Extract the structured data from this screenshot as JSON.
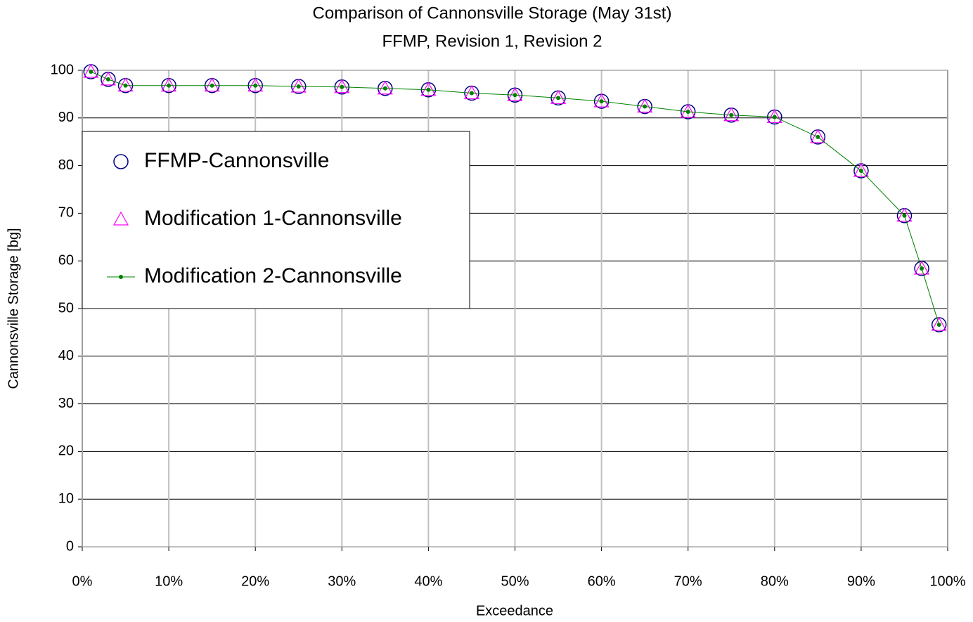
{
  "chart_data": {
    "type": "line",
    "title": "Comparison of Cannonsville Storage (May 31st)",
    "subtitle": "FFMP, Revision 1, Revision 2",
    "x_label": "Exceedance",
    "y_label": "Cannonsville Storage [bg]",
    "x": [
      1,
      3,
      5,
      10,
      15,
      20,
      25,
      30,
      35,
      40,
      45,
      50,
      55,
      60,
      65,
      70,
      75,
      80,
      85,
      90,
      95,
      97,
      99
    ],
    "series": [
      {
        "name": "FFMP-Cannonsville",
        "color": "#000080",
        "marker": "circle",
        "values": [
          99.7,
          98.1,
          96.8,
          96.8,
          96.8,
          96.8,
          96.6,
          96.5,
          96.2,
          95.9,
          95.2,
          94.8,
          94.2,
          93.5,
          92.4,
          91.3,
          90.6,
          90.2,
          86.0,
          78.9,
          69.5,
          58.4,
          46.6
        ]
      },
      {
        "name": "Modification 1-Cannonsville",
        "color": "#ff00ff",
        "marker": "triangle",
        "values": [
          99.7,
          98.1,
          96.8,
          96.8,
          96.8,
          96.8,
          96.6,
          96.5,
          96.2,
          95.9,
          95.2,
          94.8,
          94.2,
          93.5,
          92.4,
          91.3,
          90.6,
          90.2,
          86.0,
          78.9,
          69.5,
          58.4,
          46.6
        ]
      },
      {
        "name": "Modification 2-Cannonsville",
        "color": "#008000",
        "marker": "line-dot",
        "values": [
          99.7,
          98.1,
          96.8,
          96.8,
          96.8,
          96.8,
          96.6,
          96.5,
          96.2,
          95.9,
          95.2,
          94.8,
          94.2,
          93.5,
          92.4,
          91.3,
          90.6,
          90.2,
          86.0,
          78.9,
          69.5,
          58.4,
          46.6
        ]
      }
    ],
    "xlim": [
      0,
      100
    ],
    "xticks": [
      {
        "value": 0,
        "label": "0%"
      },
      {
        "value": 10,
        "label": "10%"
      },
      {
        "value": 20,
        "label": "20%"
      },
      {
        "value": 30,
        "label": "30%"
      },
      {
        "value": 40,
        "label": "40%"
      },
      {
        "value": 50,
        "label": "50%"
      },
      {
        "value": 60,
        "label": "60%"
      },
      {
        "value": 70,
        "label": "70%"
      },
      {
        "value": 80,
        "label": "80%"
      },
      {
        "value": 90,
        "label": "90%"
      },
      {
        "value": 100,
        "label": "100%"
      }
    ],
    "ylim": [
      0,
      100
    ],
    "yticks": [
      0,
      10,
      20,
      30,
      40,
      50,
      60,
      70,
      80,
      90,
      100
    ],
    "grid": true,
    "legend": "upper left"
  }
}
